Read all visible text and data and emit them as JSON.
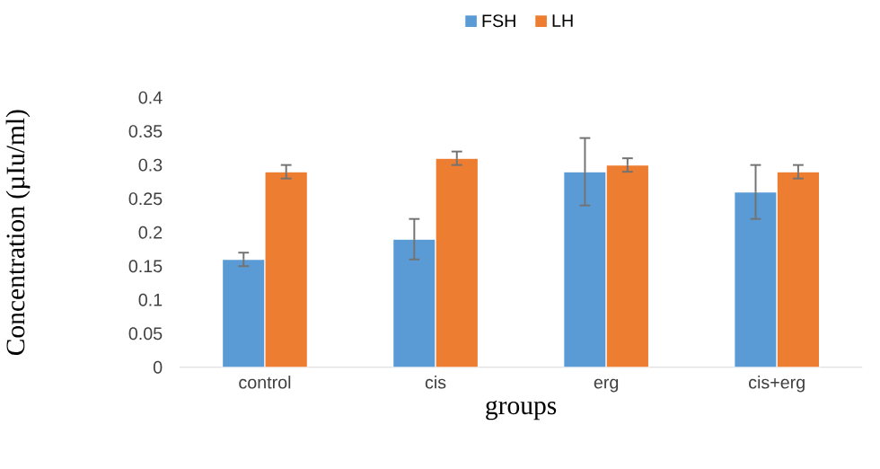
{
  "chart_data": {
    "type": "bar",
    "xlabel": "groups",
    "ylabel": "Concentration (µIu/ml)",
    "categories": [
      "control",
      "cis",
      "erg",
      "cis+erg"
    ],
    "series": [
      {
        "name": "FSH",
        "color": "#5b9bd5",
        "values": [
          0.16,
          0.19,
          0.29,
          0.26
        ],
        "errors": [
          0.01,
          0.03,
          0.05,
          0.04
        ]
      },
      {
        "name": "LH",
        "color": "#ed7d31",
        "values": [
          0.29,
          0.31,
          0.3,
          0.29
        ],
        "errors": [
          0.01,
          0.01,
          0.01,
          0.01
        ]
      }
    ],
    "ylim": [
      0,
      0.4
    ],
    "yticks": [
      0,
      0.05,
      0.1,
      0.15,
      0.2,
      0.25,
      0.3,
      0.35,
      0.4
    ],
    "legend": "top"
  }
}
